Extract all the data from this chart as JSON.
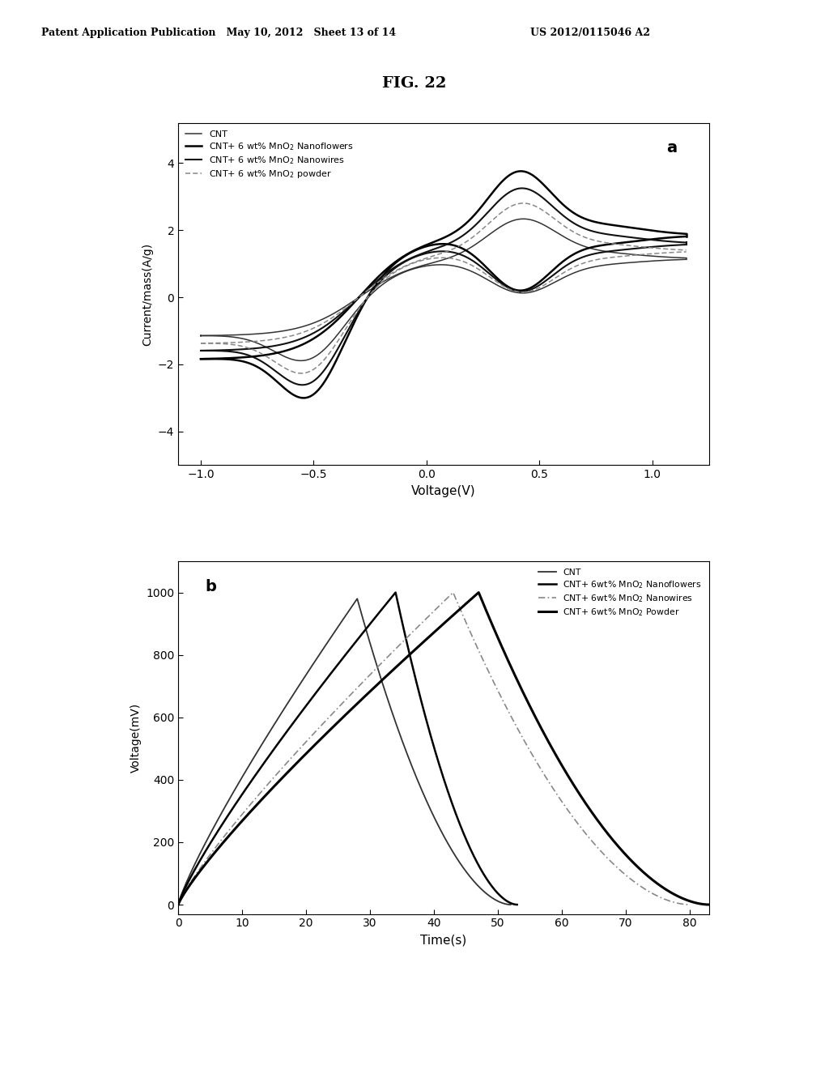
{
  "fig_title": "FIG. 22",
  "patent_header_left": "Patent Application Publication   May 10, 2012   Sheet 13 of 14",
  "patent_header_right": "US 2012/0115046 A2",
  "background_color": "#ffffff",
  "plot_a": {
    "label": "a",
    "xlabel": "Voltage(V)",
    "ylabel": "Current/mass(A/g)",
    "xlim": [
      -1.1,
      1.25
    ],
    "ylim": [
      -5.0,
      5.2
    ],
    "xticks": [
      -1.0,
      -0.5,
      0.0,
      0.5,
      1.0
    ],
    "yticks": [
      -4,
      -2,
      0,
      2,
      4
    ],
    "legend_entries": [
      "CNT",
      "CNT+ 6 wt% MnO$_2$ Nanoflowers",
      "CNT+ 6 wt% MnO$_2$ Nanowires",
      "CNT+ 6 wt% MnO$_2$ powder"
    ]
  },
  "plot_b": {
    "label": "b",
    "xlabel": "Time(s)",
    "ylabel": "Voltage(mV)",
    "xlim": [
      0,
      83
    ],
    "ylim": [
      -30,
      1100
    ],
    "xticks": [
      0,
      10,
      20,
      30,
      40,
      50,
      60,
      70,
      80
    ],
    "yticks": [
      0,
      200,
      400,
      600,
      800,
      1000
    ],
    "legend_entries": [
      "CNT",
      "CNT+ 6wt% MnO$_2$ Nanoflowers",
      "CNT+ 6wt% MnO$_2$ Nanowires",
      "CNT+ 6wt% MnO$_2$ Powder"
    ]
  }
}
